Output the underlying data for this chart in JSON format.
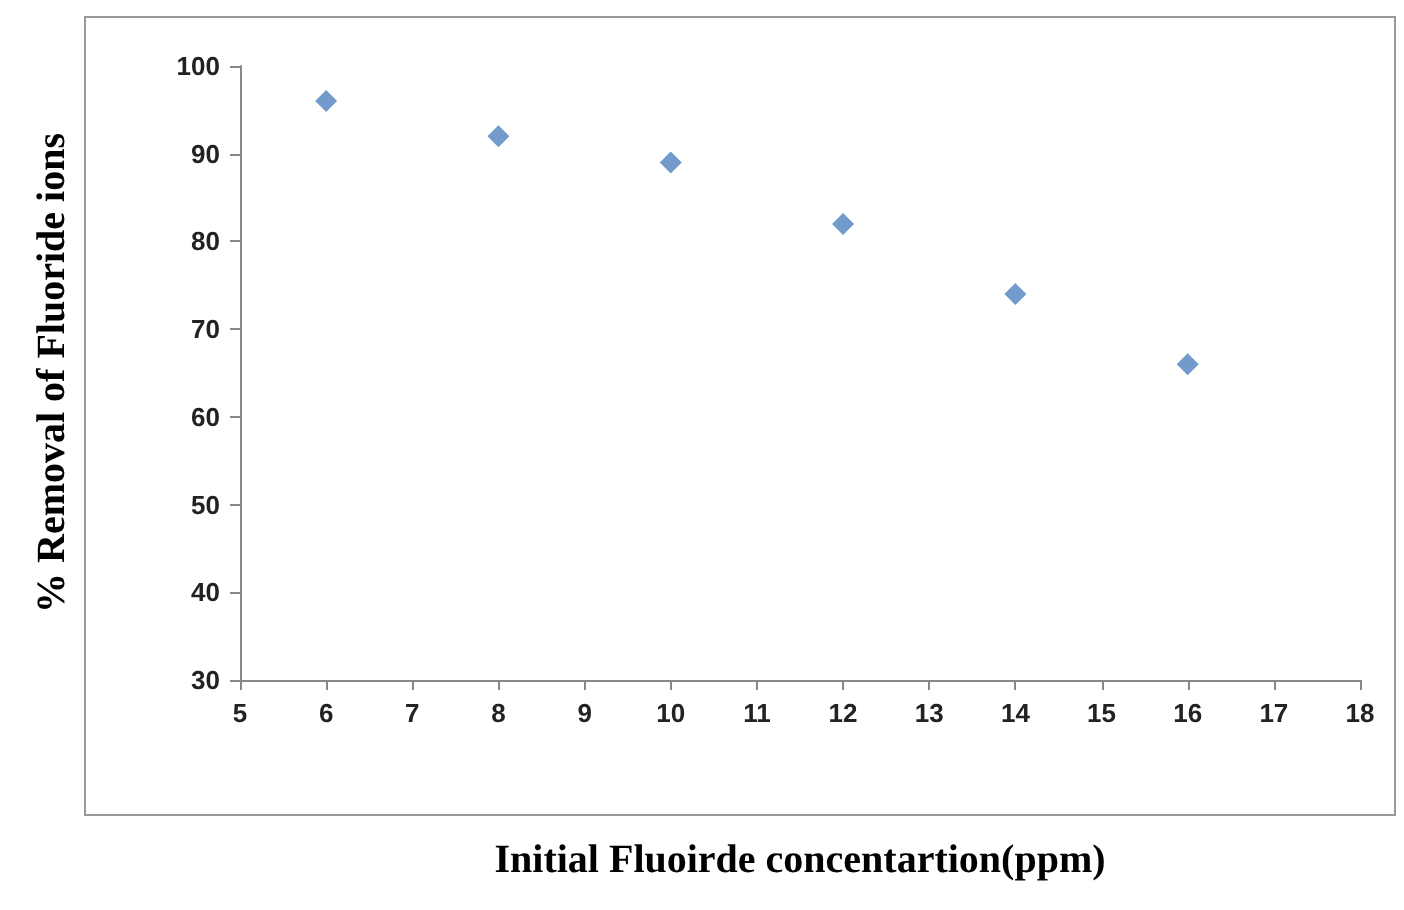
{
  "chart_data": {
    "type": "scatter",
    "xlabel": "Initial Fluoirde concentartion(ppm)",
    "ylabel": "% Removal of Fluoride ions",
    "x": [
      6,
      8,
      10,
      12,
      14,
      16
    ],
    "values": [
      96,
      92,
      89,
      82,
      74,
      66
    ],
    "color": "#4f81bd",
    "marker": "diamond",
    "grid": false,
    "xlim": [
      5,
      18
    ],
    "xticks": [
      5,
      6,
      7,
      8,
      9,
      10,
      11,
      12,
      13,
      14,
      15,
      16,
      17,
      18
    ],
    "ylim": [
      30,
      100
    ],
    "yticks": [
      30,
      40,
      50,
      60,
      70,
      80,
      90,
      100
    ]
  }
}
